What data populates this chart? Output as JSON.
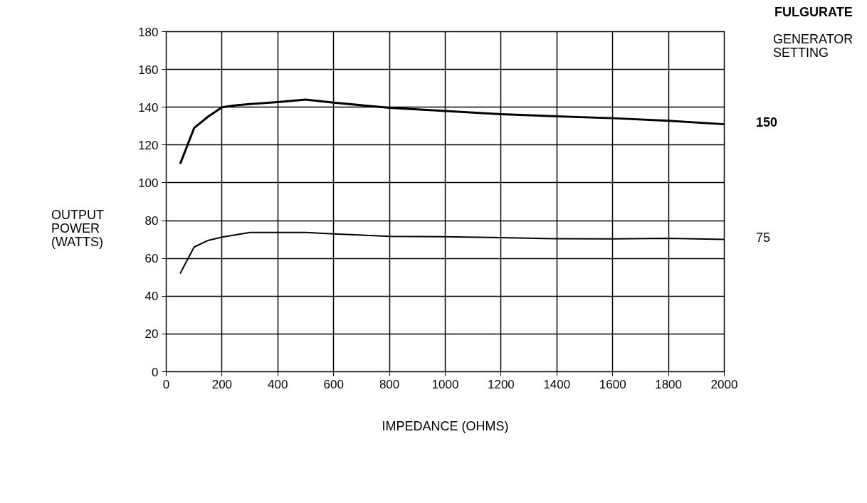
{
  "chart_data": {
    "type": "line",
    "title": "FULGURATE",
    "legend_title": "GENERATOR SETTING",
    "xlabel": "IMPEDANCE (OHMS)",
    "ylabel": "OUTPUT POWER (WATTS)",
    "xlim": [
      0,
      2000
    ],
    "xticks": [
      0,
      200,
      400,
      600,
      800,
      1000,
      1200,
      1400,
      1600,
      1800,
      2000
    ],
    "ylim": [
      0,
      180
    ],
    "yticks": [
      0,
      20,
      40,
      60,
      80,
      100,
      120,
      140,
      160,
      180
    ],
    "grid": true,
    "marker": "none",
    "line_style": "solid",
    "series": [
      {
        "name": "150",
        "color": "#000000",
        "x": [
          50,
          100,
          150,
          200,
          250,
          300,
          400,
          500,
          600,
          800,
          1000,
          1200,
          1400,
          1600,
          1800,
          2000
        ],
        "values": [
          110,
          129,
          135,
          140,
          141,
          141.7,
          142.7,
          144,
          142.4,
          139.7,
          138,
          136.3,
          135.2,
          134.2,
          132.8,
          131
        ]
      },
      {
        "name": "75",
        "color": "#000000",
        "x": [
          50,
          100,
          150,
          200,
          300,
          400,
          500,
          600,
          800,
          1000,
          1200,
          1400,
          1600,
          1800,
          2000
        ],
        "values": [
          52,
          66,
          69.5,
          71.3,
          73.7,
          73.7,
          73.7,
          73,
          71.6,
          71.5,
          71,
          70.4,
          70.3,
          70.6,
          70
        ]
      }
    ]
  }
}
